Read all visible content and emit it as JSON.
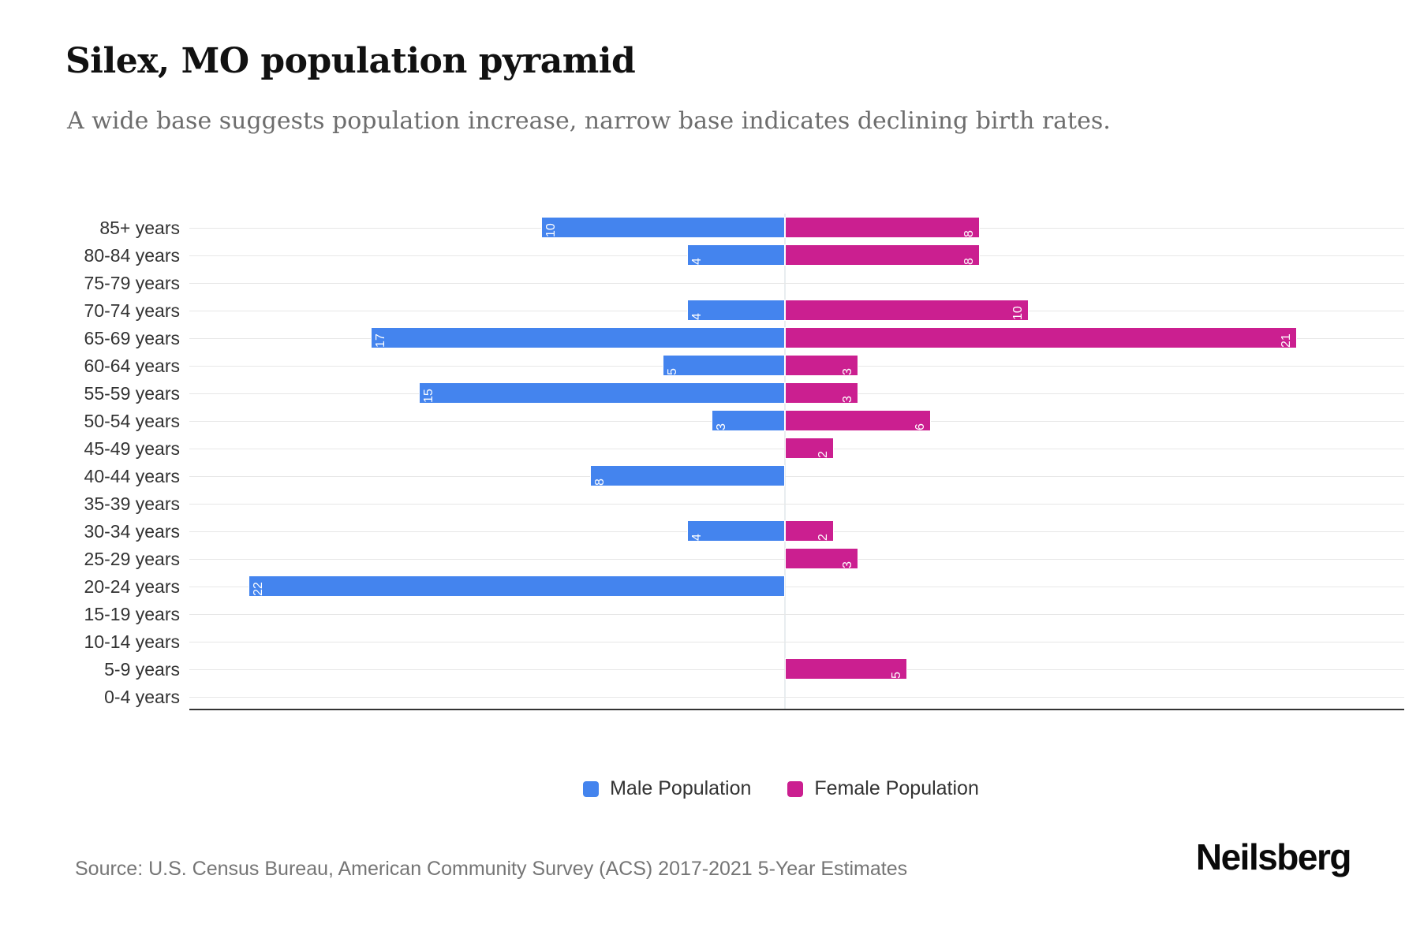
{
  "title": "Silex, MO population pyramid",
  "subtitle": "A wide base suggests population increase, narrow base indicates declining birth rates.",
  "source_note": "Source: U.S. Census Bureau, American Community Survey (ACS) 2017-2021 5-Year Estimates",
  "brand": "Neilsberg",
  "colors": {
    "male": "#4484ee",
    "female": "#cb1f90",
    "gridline": "#e7e7e7",
    "axis_line": "#333333",
    "title_text": "#111111",
    "subtitle_text": "#6d6d6d",
    "label_text": "#333333",
    "value_label_text": "#ffffff"
  },
  "legend": {
    "items": [
      {
        "label": "Male Population",
        "color": "#4484ee"
      },
      {
        "label": "Female Population",
        "color": "#cb1f90"
      }
    ]
  },
  "chart_data": {
    "type": "bar",
    "subtype": "population-pyramid",
    "orientation": "horizontal",
    "title": "Silex, MO population pyramid",
    "xlabel": "",
    "ylabel": "",
    "x_axis_tick_labels_visible": false,
    "xlim_estimated": [
      -24.4,
      25.4
    ],
    "grid": "horizontal-category-lines",
    "legend_position": "bottom-center",
    "value_labels": "inside-outer-end, rotated -90deg, white",
    "categories": [
      "85+ years",
      "80-84 years",
      "75-79 years",
      "70-74 years",
      "65-69 years",
      "60-64 years",
      "55-59 years",
      "50-54 years",
      "45-49 years",
      "40-44 years",
      "35-39 years",
      "30-34 years",
      "25-29 years",
      "20-24 years",
      "15-19 years",
      "10-14 years",
      "5-9 years",
      "0-4 years"
    ],
    "series": [
      {
        "name": "Male Population",
        "direction": "left",
        "color": "#4484ee",
        "values": [
          10,
          4,
          0,
          4,
          17,
          5,
          15,
          3,
          0,
          8,
          0,
          4,
          0,
          22,
          0,
          0,
          0,
          0
        ]
      },
      {
        "name": "Female Population",
        "direction": "right",
        "color": "#cb1f90",
        "values": [
          8,
          8,
          0,
          10,
          21,
          3,
          3,
          6,
          2,
          0,
          0,
          2,
          3,
          0,
          0,
          0,
          5,
          0
        ]
      }
    ]
  }
}
